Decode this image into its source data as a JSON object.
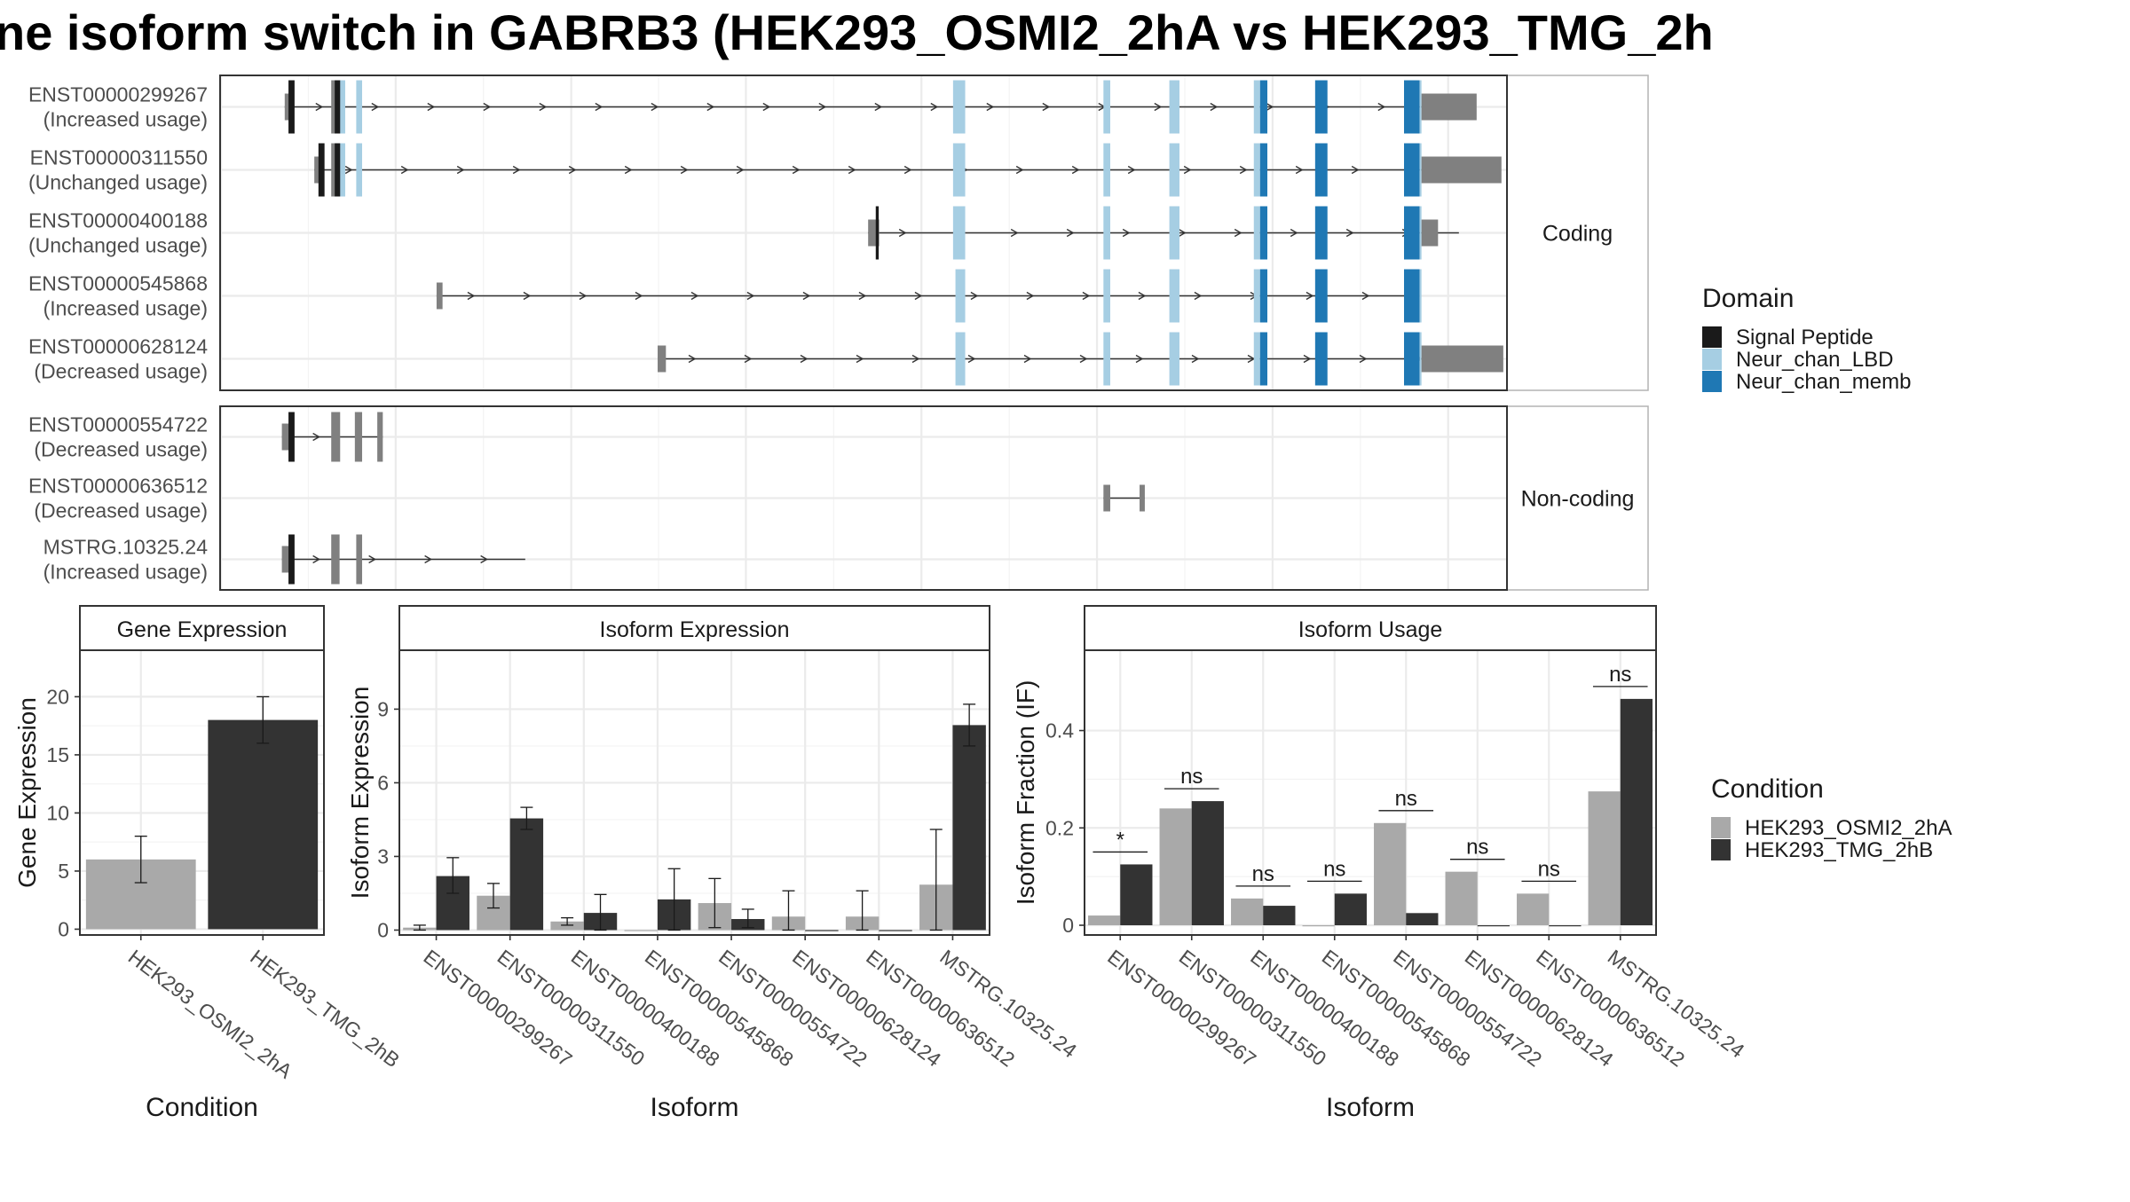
{
  "title": "ne isoform switch in GABRB3 (HEK293_OSMI2_2hA vs HEK293_TMG_2h",
  "colors": {
    "signal_peptide": "#1a1a1a",
    "neur_chan_lbd": "#a6cee3",
    "neur_chan_memb": "#1f78b4",
    "noncoding_exon": "#808080",
    "cond_a": "#a9a9a9",
    "cond_b": "#333333",
    "panel_border": "#333333",
    "grid": "#ebebeb",
    "strip_bg": "#ffffff"
  },
  "structure": {
    "facets": [
      "Coding",
      "Non-coding"
    ],
    "transcripts": [
      {
        "id": "ENST00000299267",
        "usage": "(Increased usage)",
        "facet": "Coding",
        "intron": [
          70.3,
          1347.7
        ],
        "exons": [
          {
            "s": 70.3,
            "e": 80.0,
            "d": "noncoding"
          },
          {
            "s": 74.4,
            "e": 81.0,
            "d": "signal"
          },
          {
            "s": 120.9,
            "e": 130.0,
            "d": "noncoding"
          },
          {
            "s": 124.7,
            "e": 131.4,
            "d": "signal"
          },
          {
            "s": 130.6,
            "e": 136.1,
            "d": "lbd"
          },
          {
            "s": 148.1,
            "e": 154.5,
            "d": "lbd"
          },
          {
            "s": 797.4,
            "e": 810.6,
            "d": "lbd"
          },
          {
            "s": 961.0,
            "e": 968.4,
            "d": "lbd"
          },
          {
            "s": 1032.7,
            "e": 1043.7,
            "d": "lbd"
          },
          {
            "s": 1124.6,
            "e": 1131.4,
            "d": "lbd"
          },
          {
            "s": 1131.4,
            "e": 1139.3,
            "d": "memb"
          },
          {
            "s": 1191.3,
            "e": 1204.7,
            "d": "memb"
          },
          {
            "s": 1288.0,
            "e": 1305.0,
            "d": "memb"
          },
          {
            "s": 1305.0,
            "e": 1307.0,
            "d": "lbd"
          },
          {
            "s": 1307.0,
            "e": 1367.0,
            "d": "noncoding"
          }
        ]
      },
      {
        "id": "ENST00000311550",
        "usage": "(Unchanged usage)",
        "facet": "Coding",
        "intron": [
          102.5,
          1347.7
        ],
        "exons": [
          {
            "s": 102.5,
            "e": 112.0,
            "d": "noncoding"
          },
          {
            "s": 107.0,
            "e": 113.6,
            "d": "signal"
          },
          {
            "s": 120.9,
            "e": 130.0,
            "d": "noncoding"
          },
          {
            "s": 124.7,
            "e": 131.4,
            "d": "signal"
          },
          {
            "s": 130.6,
            "e": 136.1,
            "d": "lbd"
          },
          {
            "s": 148.1,
            "e": 154.5,
            "d": "lbd"
          },
          {
            "s": 797.4,
            "e": 810.6,
            "d": "lbd"
          },
          {
            "s": 961.0,
            "e": 968.4,
            "d": "lbd"
          },
          {
            "s": 1032.7,
            "e": 1043.7,
            "d": "lbd"
          },
          {
            "s": 1124.6,
            "e": 1131.4,
            "d": "lbd"
          },
          {
            "s": 1131.4,
            "e": 1139.3,
            "d": "memb"
          },
          {
            "s": 1191.3,
            "e": 1204.7,
            "d": "memb"
          },
          {
            "s": 1288.0,
            "e": 1305.0,
            "d": "memb"
          },
          {
            "s": 1305.0,
            "e": 1307.0,
            "d": "lbd"
          },
          {
            "s": 1307.0,
            "e": 1394.0,
            "d": "noncoding"
          }
        ]
      },
      {
        "id": "ENST00000400188",
        "usage": "(Unchanged usage)",
        "facet": "Coding",
        "intron": [
          705.0,
          1347.7
        ],
        "exons": [
          {
            "s": 705.0,
            "e": 717.0,
            "d": "noncoding"
          },
          {
            "s": 713.3,
            "e": 716.5,
            "d": "signal"
          },
          {
            "s": 797.4,
            "e": 810.6,
            "d": "lbd"
          },
          {
            "s": 961.0,
            "e": 968.4,
            "d": "lbd"
          },
          {
            "s": 1032.7,
            "e": 1043.7,
            "d": "lbd"
          },
          {
            "s": 1124.6,
            "e": 1131.4,
            "d": "lbd"
          },
          {
            "s": 1131.4,
            "e": 1139.3,
            "d": "memb"
          },
          {
            "s": 1191.3,
            "e": 1204.7,
            "d": "memb"
          },
          {
            "s": 1288.0,
            "e": 1305.0,
            "d": "memb"
          },
          {
            "s": 1305.0,
            "e": 1307.0,
            "d": "lbd"
          },
          {
            "s": 1307.0,
            "e": 1325.0,
            "d": "noncoding"
          }
        ]
      },
      {
        "id": "ENST00000545868",
        "usage": "(Increased usage)",
        "facet": "Coding",
        "intron": [
          235.5,
          1305.0
        ],
        "exons": [
          {
            "s": 235.5,
            "e": 242.0,
            "d": "noncoding"
          },
          {
            "s": 800.0,
            "e": 810.6,
            "d": "lbd"
          },
          {
            "s": 961.0,
            "e": 968.4,
            "d": "lbd"
          },
          {
            "s": 1032.7,
            "e": 1043.7,
            "d": "lbd"
          },
          {
            "s": 1124.6,
            "e": 1131.4,
            "d": "lbd"
          },
          {
            "s": 1131.4,
            "e": 1139.3,
            "d": "memb"
          },
          {
            "s": 1191.3,
            "e": 1204.7,
            "d": "memb"
          },
          {
            "s": 1288.0,
            "e": 1305.0,
            "d": "memb"
          },
          {
            "s": 1305.0,
            "e": 1307.0,
            "d": "lbd"
          }
        ]
      },
      {
        "id": "ENST00000628124",
        "usage": "(Decreased usage)",
        "facet": "Coding",
        "intron": [
          476.0,
          1347.7
        ],
        "exons": [
          {
            "s": 476.0,
            "e": 485.0,
            "d": "noncoding"
          },
          {
            "s": 800.0,
            "e": 810.6,
            "d": "lbd"
          },
          {
            "s": 961.0,
            "e": 968.4,
            "d": "lbd"
          },
          {
            "s": 1032.7,
            "e": 1043.7,
            "d": "lbd"
          },
          {
            "s": 1124.6,
            "e": 1131.4,
            "d": "lbd"
          },
          {
            "s": 1131.4,
            "e": 1139.3,
            "d": "memb"
          },
          {
            "s": 1191.3,
            "e": 1204.7,
            "d": "memb"
          },
          {
            "s": 1288.0,
            "e": 1305.0,
            "d": "memb"
          },
          {
            "s": 1305.0,
            "e": 1307.0,
            "d": "lbd"
          },
          {
            "s": 1307.0,
            "e": 1396.0,
            "d": "noncoding"
          }
        ]
      },
      {
        "id": "ENST00000554722",
        "usage": "(Decreased usage)",
        "facet": "Non-coding",
        "intron": [
          67.2,
          177.0
        ],
        "exons": [
          {
            "s": 67.2,
            "e": 80.0,
            "d": "noncoding"
          },
          {
            "s": 74.4,
            "e": 81.0,
            "d": "signal"
          },
          {
            "s": 120.9,
            "e": 130.6,
            "d": "noncoding"
          },
          {
            "s": 146.6,
            "e": 154.5,
            "d": "noncoding"
          },
          {
            "s": 171.0,
            "e": 177.0,
            "d": "noncoding"
          }
        ]
      },
      {
        "id": "ENST00000636512",
        "usage": "(Decreased usage)",
        "facet": "Non-coding",
        "intron": [
          961.0,
          1006.0
        ],
        "exons": [
          {
            "s": 961.0,
            "e": 968.4,
            "d": "noncoding"
          },
          {
            "s": 1000.3,
            "e": 1006.0,
            "d": "noncoding"
          }
        ]
      },
      {
        "id": "MSTRG.10325.24",
        "usage": "(Increased usage)",
        "facet": "Non-coding",
        "intron": [
          67.2,
          332.0
        ],
        "exons": [
          {
            "s": 67.2,
            "e": 80.0,
            "d": "noncoding"
          },
          {
            "s": 74.4,
            "e": 81.0,
            "d": "signal"
          },
          {
            "s": 120.9,
            "e": 130.0,
            "d": "noncoding"
          },
          {
            "s": 148.1,
            "e": 154.5,
            "d": "noncoding"
          }
        ]
      }
    ],
    "x_range": [
      0,
      1400
    ]
  },
  "legend_domain": {
    "title": "Domain",
    "items": [
      {
        "label": "Signal Peptide",
        "color": "#1a1a1a"
      },
      {
        "label": "Neur_chan_LBD",
        "color": "#a6cee3"
      },
      {
        "label": "Neur_chan_memb",
        "color": "#1f78b4"
      }
    ]
  },
  "legend_condition": {
    "title": "Condition",
    "items": [
      {
        "label": "HEK293_OSMI2_2hA",
        "color": "#a9a9a9"
      },
      {
        "label": "HEK293_TMG_2hB",
        "color": "#333333"
      }
    ]
  },
  "chart_data": [
    {
      "type": "bar",
      "title": "Gene Expression",
      "xlabel": "Condition",
      "ylabel": "Gene Expression",
      "categories": [
        "HEK293_OSMI2_2hA",
        "HEK293_TMG_2hB"
      ],
      "values": [
        6.0,
        18.0
      ],
      "errors": [
        [
          4.0,
          8.0
        ],
        [
          16.0,
          20.0
        ]
      ],
      "ylim": [
        -0.5,
        24.0
      ],
      "yticks": [
        0,
        5,
        10,
        15,
        20
      ]
    },
    {
      "type": "bar",
      "title": "Isoform Expression",
      "xlabel": "Isoform",
      "ylabel": "Isoform Expression",
      "categories": [
        "ENST00000299267",
        "ENST00000311550",
        "ENST00000400188",
        "ENST00000545868",
        "ENST00000554722",
        "ENST00000628124",
        "ENST00000636512",
        "MSTRG.10325.24"
      ],
      "series": [
        {
          "name": "HEK293_OSMI2_2hA",
          "values": [
            0.1,
            1.4,
            0.35,
            0.0,
            1.1,
            0.55,
            0.55,
            1.85
          ],
          "errors": [
            [
              0.0,
              0.2
            ],
            [
              0.9,
              1.9
            ],
            [
              0.2,
              0.5
            ],
            [
              0,
              0
            ],
            [
              0.1,
              2.1
            ],
            [
              0.0,
              1.6
            ],
            [
              0.0,
              1.6
            ],
            [
              0.0,
              4.1
            ]
          ]
        },
        {
          "name": "HEK293_TMG_2hB",
          "values": [
            2.2,
            4.55,
            0.7,
            1.25,
            0.45,
            0.0,
            0.0,
            8.35
          ],
          "errors": [
            [
              1.5,
              2.95
            ],
            [
              4.1,
              5.0
            ],
            [
              0.0,
              1.45
            ],
            [
              0.0,
              2.5
            ],
            [
              0.1,
              0.85
            ],
            [
              0,
              0
            ],
            [
              0,
              0
            ],
            [
              7.5,
              9.2
            ]
          ]
        }
      ],
      "ylim": [
        -0.2,
        11.4
      ],
      "yticks": [
        0,
        3,
        6,
        9
      ]
    },
    {
      "type": "bar",
      "title": "Isoform Usage",
      "xlabel": "Isoform",
      "ylabel": "Isoform Fraction (IF)",
      "categories": [
        "ENST00000299267",
        "ENST00000311550",
        "ENST00000400188",
        "ENST00000545868",
        "ENST00000554722",
        "ENST00000628124",
        "ENST00000636512",
        "MSTRG.10325.24"
      ],
      "series": [
        {
          "name": "HEK293_OSMI2_2hA",
          "values": [
            0.02,
            0.24,
            0.055,
            0.0,
            0.21,
            0.11,
            0.065,
            0.275
          ]
        },
        {
          "name": "HEK293_TMG_2hB",
          "values": [
            0.125,
            0.255,
            0.04,
            0.065,
            0.025,
            0.0,
            0.0,
            0.465
          ]
        }
      ],
      "significance": [
        "*",
        "ns",
        "ns",
        "ns",
        "ns",
        "ns",
        "ns",
        "ns"
      ],
      "ylim": [
        -0.02,
        0.565
      ],
      "yticks": [
        0.0,
        0.2,
        0.4
      ]
    }
  ]
}
